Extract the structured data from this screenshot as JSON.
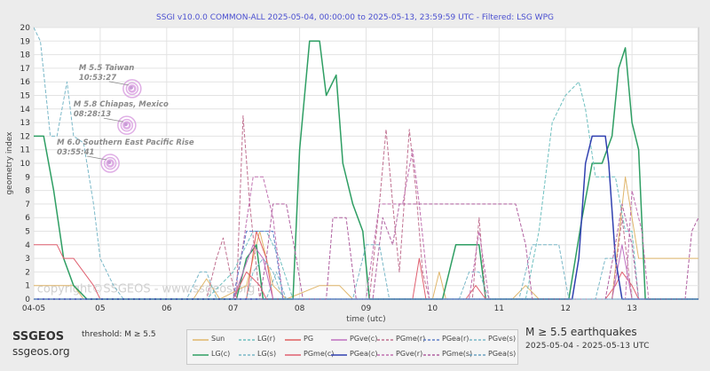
{
  "chart_data": {
    "type": "line",
    "title": "SSGI v10.0.0 COMMON-ALL 2025-05-04, 00:00:00 to 2025-05-13, 23:59:59 UTC - Filtered: LSG WPG",
    "xlabel": "time (utc)",
    "ylabel": "geometry index",
    "xlim": [
      0,
      10
    ],
    "ylim": [
      0,
      20
    ],
    "x_ticks": [
      {
        "x": 0,
        "label": "04-05"
      },
      {
        "x": 1,
        "label": "05"
      },
      {
        "x": 2,
        "label": "06"
      },
      {
        "x": 3,
        "label": "07"
      },
      {
        "x": 4,
        "label": "08"
      },
      {
        "x": 5,
        "label": "09"
      },
      {
        "x": 6,
        "label": "10"
      },
      {
        "x": 7,
        "label": "11"
      },
      {
        "x": 8,
        "label": "12"
      },
      {
        "x": 9,
        "label": "13"
      }
    ],
    "y_ticks": [
      0,
      1,
      2,
      3,
      4,
      5,
      6,
      7,
      8,
      9,
      10,
      11,
      12,
      13,
      14,
      15,
      16,
      17,
      18,
      19,
      20
    ],
    "grid": true,
    "watermark": "copyright©SSGEOS - www.ssgeos.org",
    "series": [
      {
        "name": "Sun",
        "color": "#e0b66b",
        "dash": "solid",
        "width": 1,
        "points": [
          [
            0,
            1
          ],
          [
            0.6,
            1
          ],
          [
            0.75,
            0
          ],
          [
            2.4,
            0
          ],
          [
            2.6,
            1.5
          ],
          [
            2.8,
            0
          ],
          [
            3.2,
            1
          ],
          [
            3.4,
            5
          ],
          [
            3.6,
            1
          ],
          [
            3.8,
            0
          ],
          [
            4.3,
            1
          ],
          [
            4.6,
            1
          ],
          [
            4.8,
            0
          ],
          [
            6,
            0
          ],
          [
            6.1,
            2
          ],
          [
            6.2,
            0
          ],
          [
            7.2,
            0
          ],
          [
            7.4,
            1
          ],
          [
            7.6,
            0
          ],
          [
            8.7,
            0
          ],
          [
            8.9,
            9
          ],
          [
            9.1,
            3
          ],
          [
            9.3,
            3
          ],
          [
            10,
            3
          ]
        ]
      },
      {
        "name": "LG(c)",
        "color": "#2e9e63",
        "dash": "solid",
        "width": 1.5,
        "points": [
          [
            0,
            12
          ],
          [
            0.15,
            12
          ],
          [
            0.3,
            8
          ],
          [
            0.45,
            3
          ],
          [
            0.6,
            1
          ],
          [
            0.8,
            0
          ],
          [
            3.05,
            0
          ],
          [
            3.2,
            3
          ],
          [
            3.35,
            4
          ],
          [
            3.45,
            0
          ],
          [
            3.9,
            0
          ],
          [
            4.0,
            11
          ],
          [
            4.15,
            19
          ],
          [
            4.3,
            19
          ],
          [
            4.4,
            15
          ],
          [
            4.55,
            16.5
          ],
          [
            4.65,
            10
          ],
          [
            4.8,
            7
          ],
          [
            4.95,
            5
          ],
          [
            5.05,
            0
          ],
          [
            6.15,
            0
          ],
          [
            6.25,
            2
          ],
          [
            6.35,
            4
          ],
          [
            6.7,
            4
          ],
          [
            6.8,
            0
          ],
          [
            8.05,
            0
          ],
          [
            8.25,
            6
          ],
          [
            8.4,
            10
          ],
          [
            8.55,
            10
          ],
          [
            8.7,
            12
          ],
          [
            8.8,
            17
          ],
          [
            8.9,
            18.5
          ],
          [
            9.0,
            13
          ],
          [
            9.1,
            11
          ],
          [
            9.2,
            0
          ],
          [
            10,
            0
          ]
        ]
      },
      {
        "name": "LG(r)",
        "color": "#6fc0c0",
        "dash": "dashed",
        "width": 1,
        "points": [
          [
            0,
            0
          ],
          [
            2.6,
            0
          ],
          [
            2.8,
            1
          ],
          [
            3.0,
            2
          ],
          [
            3.3,
            5
          ],
          [
            3.5,
            5
          ],
          [
            3.7,
            3
          ],
          [
            3.9,
            0
          ],
          [
            7.4,
            0
          ],
          [
            7.6,
            5
          ],
          [
            7.8,
            13
          ],
          [
            8.0,
            15
          ],
          [
            8.2,
            16
          ],
          [
            8.3,
            14
          ],
          [
            8.45,
            9
          ],
          [
            8.6,
            9
          ],
          [
            8.75,
            9
          ],
          [
            8.9,
            5
          ],
          [
            9.0,
            5
          ],
          [
            9.1,
            0
          ],
          [
            10,
            0
          ]
        ]
      },
      {
        "name": "PG",
        "color": "#e06060",
        "dash": "solid",
        "width": 1,
        "points": [
          [
            0,
            0
          ],
          [
            3.2,
            0
          ],
          [
            3.35,
            5
          ],
          [
            3.5,
            3
          ],
          [
            3.6,
            0
          ],
          [
            10,
            0
          ]
        ]
      },
      {
        "name": "LG(s)",
        "color": "#7ab8c8",
        "dash": "dashed",
        "width": 1,
        "points": [
          [
            0,
            20
          ],
          [
            0.1,
            19
          ],
          [
            0.25,
            12
          ],
          [
            0.35,
            12
          ],
          [
            0.5,
            16
          ],
          [
            0.6,
            12
          ],
          [
            0.75,
            11.5
          ],
          [
            0.9,
            7
          ],
          [
            1.0,
            3
          ],
          [
            1.2,
            1
          ],
          [
            1.35,
            0
          ],
          [
            2.3,
            0
          ],
          [
            2.5,
            2
          ],
          [
            2.6,
            2
          ],
          [
            2.75,
            0
          ],
          [
            3.2,
            0
          ],
          [
            3.3,
            2
          ],
          [
            3.45,
            3
          ],
          [
            3.6,
            2
          ],
          [
            3.75,
            0
          ],
          [
            4.8,
            0
          ],
          [
            5.0,
            4
          ],
          [
            5.2,
            4
          ],
          [
            5.35,
            0
          ],
          [
            6.4,
            0
          ],
          [
            6.55,
            2
          ],
          [
            6.7,
            2
          ],
          [
            6.85,
            0
          ],
          [
            7.3,
            0
          ],
          [
            7.5,
            4
          ],
          [
            7.9,
            4
          ],
          [
            8.05,
            0
          ],
          [
            8.45,
            0
          ],
          [
            8.6,
            3
          ],
          [
            8.75,
            3
          ],
          [
            8.85,
            0
          ],
          [
            10,
            0
          ]
        ]
      },
      {
        "name": "PGme(c)",
        "color": "#e06070",
        "dash": "solid",
        "width": 1,
        "points": [
          [
            0,
            4
          ],
          [
            0.35,
            4
          ],
          [
            0.45,
            3
          ],
          [
            0.6,
            3
          ],
          [
            0.75,
            2
          ],
          [
            0.9,
            1
          ],
          [
            1.0,
            0
          ],
          [
            3.0,
            0
          ],
          [
            3.2,
            2
          ],
          [
            3.4,
            1
          ],
          [
            3.5,
            0
          ],
          [
            5.7,
            0
          ],
          [
            5.8,
            3
          ],
          [
            5.9,
            0
          ],
          [
            6.5,
            0
          ],
          [
            6.65,
            1
          ],
          [
            6.8,
            0
          ],
          [
            8.6,
            0
          ],
          [
            8.75,
            1
          ],
          [
            8.85,
            2
          ],
          [
            9.0,
            1
          ],
          [
            9.1,
            0
          ],
          [
            10,
            0
          ]
        ]
      },
      {
        "name": "PGve(c)",
        "color": "#c070c0",
        "dash": "solid",
        "width": 1,
        "points": [
          [
            0,
            0
          ],
          [
            3.0,
            0
          ],
          [
            3.15,
            2
          ],
          [
            3.3,
            4
          ],
          [
            3.45,
            3
          ],
          [
            3.6,
            0
          ],
          [
            8.7,
            0
          ],
          [
            8.85,
            4
          ],
          [
            9.0,
            0
          ],
          [
            10,
            0
          ]
        ]
      },
      {
        "name": "PGea(c)",
        "color": "#3040b0",
        "dash": "solid",
        "width": 1.5,
        "points": [
          [
            0,
            0
          ],
          [
            8.1,
            0
          ],
          [
            8.2,
            3
          ],
          [
            8.3,
            10
          ],
          [
            8.4,
            12
          ],
          [
            8.6,
            12
          ],
          [
            8.65,
            10
          ],
          [
            8.75,
            3
          ],
          [
            8.85,
            0
          ],
          [
            10,
            0
          ]
        ]
      },
      {
        "name": "PGme(r)",
        "color": "#c07090",
        "dash": "dashed",
        "width": 1,
        "points": [
          [
            0,
            0
          ],
          [
            2.6,
            0
          ],
          [
            2.75,
            3
          ],
          [
            2.85,
            4.5
          ],
          [
            2.95,
            2
          ],
          [
            3.05,
            0
          ],
          [
            3.1,
            7
          ],
          [
            3.15,
            13.5
          ],
          [
            3.25,
            7
          ],
          [
            3.4,
            0
          ],
          [
            5.05,
            0
          ],
          [
            5.2,
            7
          ],
          [
            5.3,
            12.5
          ],
          [
            5.4,
            7
          ],
          [
            5.5,
            2
          ],
          [
            5.65,
            12.5
          ],
          [
            5.75,
            8
          ],
          [
            5.85,
            2
          ],
          [
            5.95,
            0
          ],
          [
            6.6,
            0
          ],
          [
            6.7,
            6
          ],
          [
            6.8,
            0
          ],
          [
            8.7,
            0
          ],
          [
            8.85,
            6
          ],
          [
            9.0,
            0
          ],
          [
            10,
            0
          ]
        ]
      },
      {
        "name": "PGve(r)",
        "color": "#c070b0",
        "dash": "dashed",
        "width": 1,
        "points": [
          [
            0,
            0
          ],
          [
            3.0,
            0
          ],
          [
            3.15,
            4
          ],
          [
            3.3,
            9
          ],
          [
            3.45,
            9
          ],
          [
            3.6,
            6
          ],
          [
            3.75,
            0
          ],
          [
            5.0,
            0
          ],
          [
            5.2,
            7
          ],
          [
            5.4,
            7
          ],
          [
            5.55,
            7
          ],
          [
            5.7,
            11
          ],
          [
            5.8,
            7
          ],
          [
            5.95,
            0
          ],
          [
            6.55,
            0
          ],
          [
            6.7,
            5
          ],
          [
            6.85,
            0
          ],
          [
            8.9,
            0
          ],
          [
            9.0,
            8
          ],
          [
            9.15,
            5
          ],
          [
            9.25,
            0
          ],
          [
            10,
            0
          ]
        ]
      },
      {
        "name": "PGea(r)",
        "color": "#6080c8",
        "dash": "dashed",
        "width": 1,
        "points": [
          [
            0,
            0
          ],
          [
            3.0,
            0
          ],
          [
            3.2,
            5
          ],
          [
            3.6,
            5
          ],
          [
            3.75,
            0
          ],
          [
            10,
            0
          ]
        ]
      },
      {
        "name": "PGme(s)",
        "color": "#b060a0",
        "dash": "dashed",
        "width": 1,
        "points": [
          [
            0,
            0
          ],
          [
            3.4,
            0
          ],
          [
            3.5,
            3
          ],
          [
            3.6,
            7
          ],
          [
            3.8,
            7
          ],
          [
            3.95,
            3
          ],
          [
            4.05,
            0
          ],
          [
            4.4,
            0
          ],
          [
            4.5,
            6
          ],
          [
            4.7,
            6
          ],
          [
            4.85,
            0
          ],
          [
            5.1,
            0
          ],
          [
            5.25,
            6
          ],
          [
            5.4,
            4
          ],
          [
            5.5,
            7
          ],
          [
            7.25,
            7
          ],
          [
            7.4,
            4
          ],
          [
            7.5,
            0
          ],
          [
            8.6,
            0
          ],
          [
            8.75,
            4
          ],
          [
            8.85,
            7
          ],
          [
            9.0,
            4
          ],
          [
            9.1,
            0
          ],
          [
            9.8,
            0
          ],
          [
            9.9,
            5
          ],
          [
            10,
            6
          ]
        ]
      },
      {
        "name": "PGve(s)",
        "color": "#7ab8c8",
        "dash": "dashed",
        "width": 1,
        "points": [
          [
            0,
            0
          ],
          [
            3.5,
            0
          ],
          [
            3.65,
            2
          ],
          [
            3.8,
            0
          ],
          [
            10,
            0
          ]
        ]
      },
      {
        "name": "PGea(s)",
        "color": "#6aa0c0",
        "dash": "dashed",
        "width": 1,
        "points": [
          [
            0,
            0
          ],
          [
            10,
            0
          ]
        ]
      }
    ],
    "annotations": [
      {
        "name": "M 5.5 Taiwan",
        "time": "10:53:27",
        "x": 1.48,
        "y": 15.5
      },
      {
        "name": "M 5.8 Chiapas, Mexico",
        "time": "08:28:13",
        "x": 1.4,
        "y": 12.8
      },
      {
        "name": "M 6.0 Southern East Pacific Rise",
        "time": "03:55:41",
        "x": 1.15,
        "y": 10.0
      }
    ]
  },
  "legend": {
    "entries": [
      {
        "name": "Sun",
        "color": "#e0b66b",
        "dash": "solid"
      },
      {
        "name": "LG(r)",
        "color": "#6fc0c0",
        "dash": "dashed"
      },
      {
        "name": "PG",
        "color": "#e06060",
        "dash": "solid"
      },
      {
        "name": "PGve(c)",
        "color": "#c070c0",
        "dash": "solid"
      },
      {
        "name": "PGme(r)",
        "color": "#c07090",
        "dash": "dashed"
      },
      {
        "name": "PGea(r)",
        "color": "#6080c8",
        "dash": "dashed"
      },
      {
        "name": "PGve(s)",
        "color": "#7ab8c8",
        "dash": "dashed"
      },
      {
        "name": "LG(c)",
        "color": "#2e9e63",
        "dash": "solid"
      },
      {
        "name": "LG(s)",
        "color": "#7ab8c8",
        "dash": "dashed"
      },
      {
        "name": "PGme(c)",
        "color": "#e06070",
        "dash": "solid"
      },
      {
        "name": "PGea(c)",
        "color": "#3040b0",
        "dash": "solid"
      },
      {
        "name": "PGve(r)",
        "color": "#c070b0",
        "dash": "dashed"
      },
      {
        "name": "PGme(s)",
        "color": "#b060a0",
        "dash": "dashed"
      },
      {
        "name": "PGea(s)",
        "color": "#6aa0c0",
        "dash": "dashed"
      }
    ]
  },
  "footer": {
    "brand": "SSGEOS",
    "site": "ssgeos.org",
    "threshold": "threshold: M ≥ 5.5",
    "eq_title": "M ≥ 5.5 earthquakes",
    "eq_range": "2025-05-04 - 2025-05-13 UTC"
  },
  "colors": {
    "title": "#4a4fd0",
    "annotation": "#8a8a8a",
    "marker": "#d9a0e0",
    "background": "#ececec",
    "plot_background": "#ffffff"
  }
}
